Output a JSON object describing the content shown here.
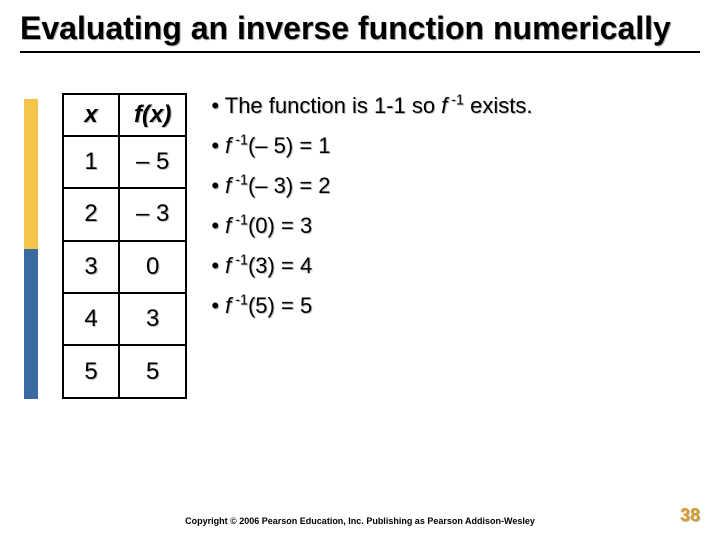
{
  "title": "Evaluating an inverse function numerically",
  "table": {
    "header_x": "x",
    "header_fx": "f(x)",
    "rows": [
      {
        "x": "1",
        "fx": "– 5"
      },
      {
        "x": "2",
        "fx": "– 3"
      },
      {
        "x": "3",
        "fx": "0"
      },
      {
        "x": "4",
        "fx": "3"
      },
      {
        "x": "5",
        "fx": "5"
      }
    ]
  },
  "bullets": {
    "b0_pre": "The function is 1‑1 so ",
    "b0_f": "f",
    "b0_sup": " -1",
    "b0_post": " exists.",
    "items": [
      {
        "arg": "– 5",
        "res": "1"
      },
      {
        "arg": "– 3",
        "res": "2"
      },
      {
        "arg": "0",
        "res": "3"
      },
      {
        "arg": "3",
        "res": "4"
      },
      {
        "arg": "5",
        "res": "5"
      }
    ]
  },
  "inv_f": "f",
  "inv_sup": " -1",
  "footer": "Copyright © 2006 Pearson Education, Inc.  Publishing as Pearson Addison-Wesley",
  "page_number": "38",
  "colors": {
    "accent_top": "#f4c54a",
    "accent_bottom": "#3b6aa0",
    "pagenum": "#d99a2b"
  }
}
